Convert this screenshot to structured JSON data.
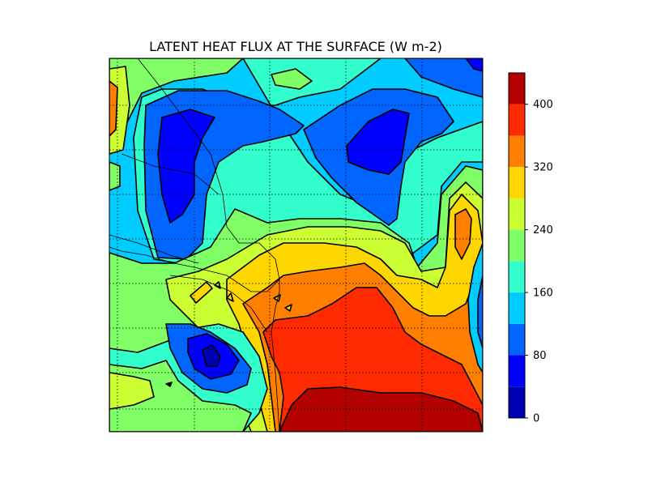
{
  "chart_data": {
    "type": "heatmap",
    "title": "LATENT HEAT FLUX AT THE SURFACE (W m-2)",
    "xlabel": "",
    "ylabel": "",
    "grid": true,
    "legend": "colorbar-right",
    "colorbar": {
      "levels": [
        0,
        40,
        80,
        120,
        160,
        200,
        240,
        280,
        320,
        360,
        400,
        440
      ],
      "colors": [
        "#0000b3",
        "#0000ff",
        "#0066ff",
        "#00ccff",
        "#33ffcc",
        "#80ff66",
        "#ccff33",
        "#ffd700",
        "#ff8000",
        "#ff2a00",
        "#b30000"
      ],
      "tick_values": [
        0,
        80,
        160,
        240,
        320,
        400
      ],
      "tick_labels": [
        "0",
        "80",
        "160",
        "240",
        "320",
        "400"
      ],
      "range": [
        0,
        440
      ]
    },
    "regions": [
      {
        "name": "upper-left-low",
        "value": 45
      },
      {
        "name": "upper-right-low",
        "value": 55
      },
      {
        "name": "lower-left-low",
        "value": 35
      },
      {
        "name": "lower-right-high",
        "value": 420
      },
      {
        "name": "right-edge-low",
        "value": 100
      }
    ]
  }
}
